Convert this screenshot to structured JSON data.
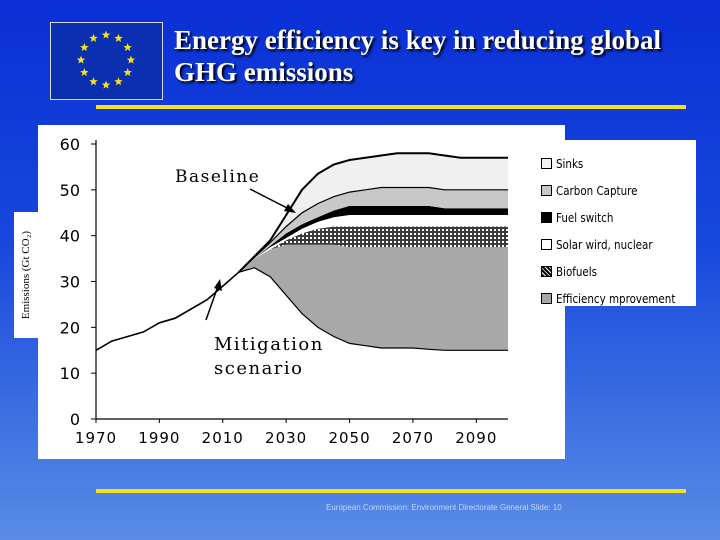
{
  "slide": {
    "title": "Energy efficiency is key in reducing global GHG emissions",
    "footer": "European Commission: Environment Directorate General Slide: 10",
    "flag": {
      "background": "#0a2fb0",
      "star_color": "#f5e11e",
      "star_count": 12
    }
  },
  "chart_data": {
    "type": "area",
    "ylabel": "Emissions (Gt CO₂)",
    "ylim": [
      0,
      60
    ],
    "xlim": [
      1970,
      2100
    ],
    "y_ticks": [
      0,
      10,
      20,
      30,
      40,
      50,
      60
    ],
    "x_ticks": [
      1970,
      1990,
      2010,
      2030,
      2050,
      2070,
      2090
    ],
    "grid": false,
    "legend_position": "right",
    "stacking": "cumulative boundaries, bottom to top",
    "x": [
      1970,
      1975,
      1980,
      1985,
      1990,
      1995,
      2000,
      2005,
      2010,
      2015,
      2020,
      2025,
      2030,
      2035,
      2040,
      2045,
      2050,
      2055,
      2060,
      2065,
      2070,
      2075,
      2080,
      2085,
      2090,
      2095,
      2100
    ],
    "historical": {
      "x": [
        1970,
        1975,
        1980,
        1985,
        1990,
        1995,
        2000,
        2005,
        2010,
        2015
      ],
      "values": [
        15,
        17,
        18,
        19,
        21,
        22,
        24,
        26,
        29,
        32
      ]
    },
    "boundaries": [
      {
        "name": "Mitigation scenario",
        "values": [
          null,
          null,
          null,
          null,
          null,
          null,
          null,
          null,
          null,
          32,
          33,
          31,
          27,
          23,
          20,
          18,
          16.5,
          16,
          15.5,
          15.5,
          15.5,
          15.2,
          15,
          15,
          15,
          15,
          15
        ]
      },
      {
        "name": "Efficiency improvement",
        "values": [
          null,
          null,
          null,
          null,
          null,
          null,
          null,
          null,
          null,
          32,
          35,
          37,
          38,
          38,
          38,
          38,
          37.5,
          37.5,
          37.5,
          37.5,
          37.5,
          37.5,
          37.5,
          37.5,
          37.5,
          37.5,
          37.5
        ]
      },
      {
        "name": "Biofuels",
        "values": [
          null,
          null,
          null,
          null,
          null,
          null,
          null,
          null,
          null,
          32,
          35,
          37,
          39,
          40.5,
          41.5,
          42,
          42,
          42,
          42,
          42,
          42,
          42,
          42,
          42,
          42,
          42,
          42
        ]
      },
      {
        "name": "Solar wind, nuclear",
        "values": [
          null,
          null,
          null,
          null,
          null,
          null,
          null,
          null,
          null,
          32,
          35,
          37.5,
          39.5,
          41.5,
          43,
          44,
          44.5,
          44.5,
          44.5,
          44.5,
          44.5,
          44.5,
          44.5,
          44.5,
          44.5,
          44.5,
          44.5
        ]
      },
      {
        "name": "Fuel switch",
        "values": [
          null,
          null,
          null,
          null,
          null,
          null,
          null,
          null,
          null,
          32,
          35,
          37.8,
          40.5,
          42.5,
          44,
          45.5,
          46.5,
          46.5,
          46.5,
          46.5,
          46.5,
          46.5,
          46,
          46,
          46,
          46,
          46
        ]
      },
      {
        "name": "Carbon Capture",
        "values": [
          null,
          null,
          null,
          null,
          null,
          null,
          null,
          null,
          null,
          32,
          35.3,
          38.5,
          42,
          45,
          47,
          48.5,
          49.5,
          50,
          50.5,
          50.5,
          50.5,
          50.5,
          50,
          50,
          50,
          50,
          50
        ]
      },
      {
        "name": "Baseline",
        "values": [
          null,
          null,
          null,
          null,
          null,
          null,
          null,
          null,
          null,
          32,
          35.5,
          39,
          44.5,
          50,
          53.5,
          55.5,
          56.5,
          57,
          57.5,
          58,
          58,
          58,
          57.5,
          57,
          57,
          57,
          57
        ]
      }
    ],
    "series": [
      {
        "name": "Sinks",
        "fill": "#f2f2f2"
      },
      {
        "name": "Carbon Capture",
        "fill": "#c8c8c8"
      },
      {
        "name": "Fuel switch",
        "fill": "#000000"
      },
      {
        "name": "Solar wird, nuclear",
        "fill": "#ffffff"
      },
      {
        "name": "Biofuels",
        "fill": "#2a2a2a"
      },
      {
        "name": "Efficiency  mprovement",
        "fill": "#a8a8a8"
      }
    ],
    "annotations": [
      "Baseline",
      "Mitigation scenario"
    ]
  }
}
